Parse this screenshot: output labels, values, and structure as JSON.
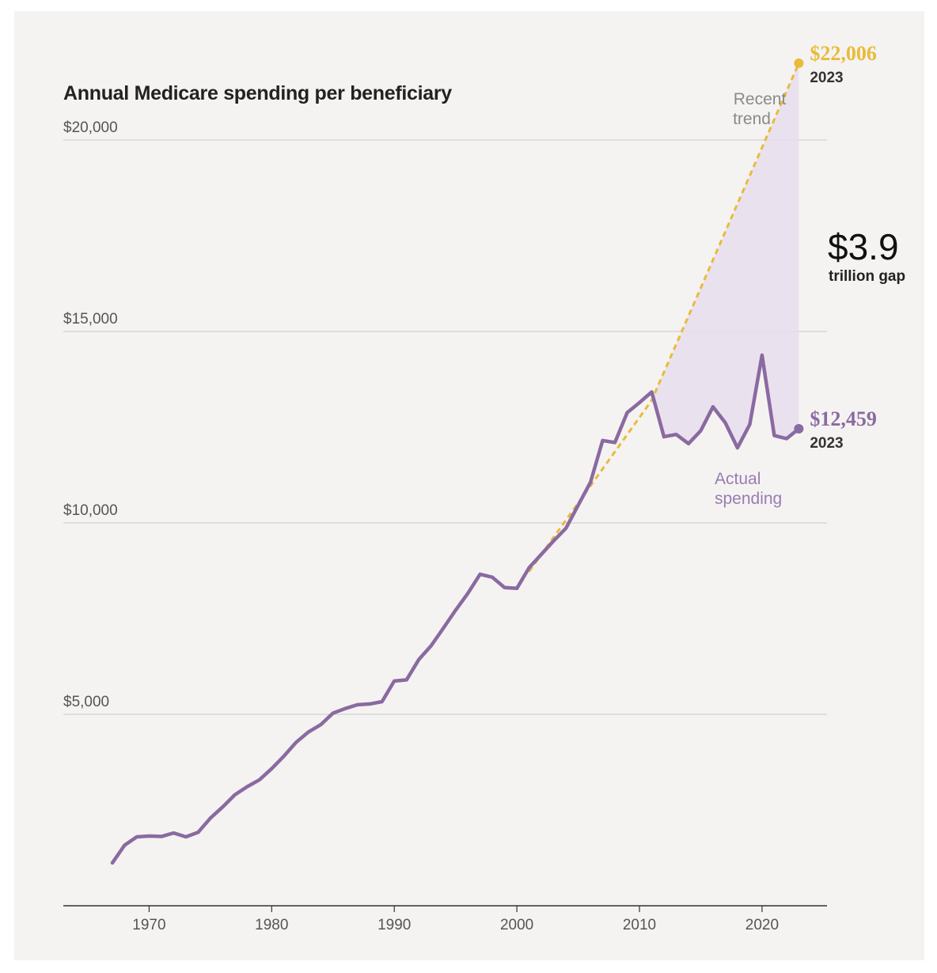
{
  "chart_data": {
    "type": "line",
    "title": "Annual Medicare spending per beneficiary",
    "xlabel": "",
    "ylabel": "",
    "xlim": [
      1967,
      2023
    ],
    "ylim": [
      0,
      20000
    ],
    "y_ticks": [
      {
        "value": 5000,
        "label": "$5,000"
      },
      {
        "value": 10000,
        "label": "$10,000"
      },
      {
        "value": 15000,
        "label": "$15,000"
      },
      {
        "value": 20000,
        "label": "$20,000"
      }
    ],
    "x_ticks": [
      {
        "value": 1970,
        "label": "1970"
      },
      {
        "value": 1980,
        "label": "1980"
      },
      {
        "value": 1990,
        "label": "1990"
      },
      {
        "value": 2000,
        "label": "2000"
      },
      {
        "value": 2010,
        "label": "2010"
      },
      {
        "value": 2020,
        "label": "2020"
      }
    ],
    "grid": true,
    "series": [
      {
        "name": "Actual spending",
        "color": "#8a6aa1",
        "style": "solid",
        "x": [
          1967,
          1968,
          1969,
          1970,
          1971,
          1972,
          1973,
          1974,
          1975,
          1976,
          1977,
          1978,
          1979,
          1980,
          1981,
          1982,
          1983,
          1984,
          1985,
          1986,
          1987,
          1988,
          1989,
          1990,
          1991,
          1992,
          1993,
          1994,
          1995,
          1996,
          1997,
          1998,
          1999,
          2000,
          2001,
          2002,
          2003,
          2004,
          2005,
          2006,
          2007,
          2008,
          2009,
          2010,
          2011,
          2012,
          2013,
          2014,
          2015,
          2016,
          2017,
          2018,
          2019,
          2020,
          2021,
          2022,
          2023
        ],
        "y": [
          1120,
          1580,
          1800,
          1820,
          1810,
          1900,
          1800,
          1920,
          2290,
          2580,
          2900,
          3110,
          3290,
          3580,
          3910,
          4270,
          4540,
          4730,
          5030,
          5150,
          5250,
          5270,
          5330,
          5870,
          5900,
          6430,
          6790,
          7250,
          7720,
          8160,
          8660,
          8580,
          8310,
          8290,
          8830,
          9180,
          9530,
          9860,
          10460,
          11060,
          12150,
          12100,
          12880,
          13140,
          13420,
          12250,
          12310,
          12070,
          12410,
          13030,
          12620,
          11960,
          12570,
          14380,
          12280,
          12200,
          12459
        ]
      },
      {
        "name": "Recent trend",
        "color": "#e9bb3a",
        "style": "dashed",
        "x": [
          2001,
          2011,
          2023
        ],
        "y": [
          8730,
          13200,
          22006
        ]
      }
    ],
    "annotations": [
      {
        "text": "Recent trend",
        "lines": [
          "Recent",
          "trend"
        ],
        "series": "Recent trend"
      },
      {
        "text": "Actual spending",
        "lines": [
          "Actual",
          "spending"
        ],
        "series": "Actual spending"
      },
      {
        "value_label": "$22,006",
        "year_label": "2023",
        "x": 2023,
        "y": 22006,
        "color": "#e9bb3a"
      },
      {
        "value_label": "$12,459",
        "year_label": "2023",
        "x": 2023,
        "y": 12459,
        "color": "#8a6aa1"
      },
      {
        "big": "$3.9",
        "small": "trillion gap"
      }
    ],
    "gap_fill": {
      "from_year": 2011,
      "to_year": 2023,
      "color": "#e8ddef"
    }
  }
}
